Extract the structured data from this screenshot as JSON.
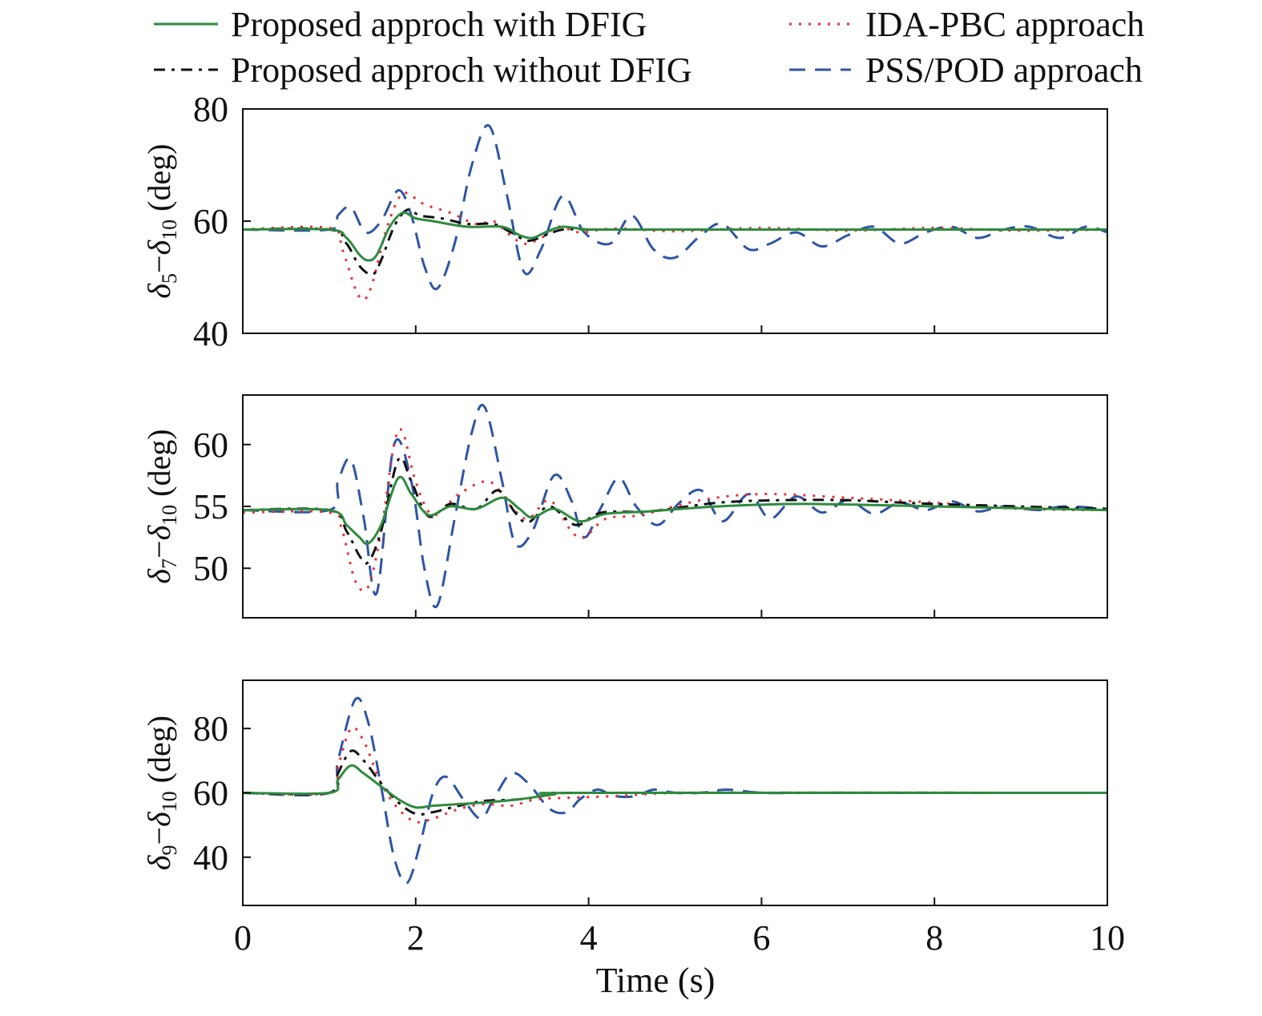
{
  "chart_data": [
    {
      "type": "line",
      "ylabel": {
        "sym1": "δ",
        "sub1": "5",
        "dash": "−",
        "sym2": "δ",
        "sub2": "10",
        "unit": " (deg)"
      },
      "ylim": [
        40,
        80
      ],
      "yticks": [
        40,
        60,
        80
      ],
      "xlim": [
        0,
        10
      ],
      "series": [
        {
          "name": "Proposed approch with DFIG",
          "x": [
            0,
            1,
            1.2,
            1.35,
            1.45,
            1.55,
            1.7,
            1.85,
            2.0,
            2.2,
            2.6,
            3.0,
            3.2,
            3.35,
            3.5,
            3.7,
            4.0,
            4.5,
            10
          ],
          "y": [
            58.5,
            58.5,
            57,
            54,
            53,
            54,
            59,
            61.5,
            60.5,
            60,
            59,
            59,
            57.5,
            57,
            58,
            59,
            58.5,
            58.5,
            58.5
          ]
        },
        {
          "name": "Proposed approch without DFIG",
          "x": [
            0,
            1,
            1.2,
            1.35,
            1.5,
            1.6,
            1.75,
            1.9,
            2.05,
            2.3,
            2.6,
            2.9,
            3.1,
            3.3,
            3.5,
            3.7,
            4.0,
            4.5,
            10
          ],
          "y": [
            58.5,
            58.5,
            56,
            52,
            50.5,
            53,
            59,
            62,
            61,
            60.5,
            59.5,
            59.5,
            58,
            56.5,
            57.5,
            58.5,
            58.5,
            58.5,
            58.5
          ]
        },
        {
          "name": "IDA-PBC approach",
          "x": [
            0,
            1,
            1.15,
            1.3,
            1.4,
            1.5,
            1.65,
            1.8,
            1.9,
            2.1,
            2.4,
            2.7,
            2.9,
            3.05,
            3.25,
            3.45,
            3.65,
            3.9,
            4.3,
            5,
            6,
            7,
            8,
            9,
            10
          ],
          "y": [
            58.5,
            58.8,
            55,
            48,
            46,
            49,
            58,
            64,
            65,
            63,
            61.5,
            59.5,
            60,
            58,
            56,
            57,
            59,
            58,
            58.7,
            58.2,
            58.8,
            58.3,
            58.8,
            58.3,
            58.5
          ]
        },
        {
          "name": "PSS/POD approach",
          "x": [
            0,
            1,
            1.1,
            1.25,
            1.42,
            1.6,
            1.8,
            1.95,
            2.1,
            2.25,
            2.45,
            2.65,
            2.85,
            3.05,
            3.25,
            3.45,
            3.7,
            3.95,
            4.25,
            4.5,
            4.75,
            5.0,
            5.3,
            5.55,
            5.85,
            6.1,
            6.4,
            6.7,
            7.0,
            7.3,
            7.6,
            7.9,
            8.2,
            8.5,
            8.8,
            9.1,
            9.45,
            9.75,
            10
          ],
          "y": [
            58.5,
            58.5,
            61,
            62.5,
            58,
            60,
            65.5,
            61,
            52,
            48,
            56,
            70,
            77,
            65,
            51,
            55,
            64.5,
            58,
            56,
            61,
            55,
            53.5,
            57.5,
            59.5,
            55,
            56,
            58,
            55.5,
            57.5,
            59,
            56,
            58,
            59,
            57,
            58.5,
            59,
            57,
            59,
            58
          ]
        }
      ]
    },
    {
      "type": "line",
      "ylabel": {
        "sym1": "δ",
        "sub1": "7",
        "dash": "−",
        "sym2": "δ",
        "sub2": "10",
        "unit": " (deg)"
      },
      "ylim": [
        46,
        64
      ],
      "yticks": [
        50,
        55,
        60
      ],
      "xlim": [
        0,
        10
      ],
      "series": [
        {
          "name": "Proposed approch with DFIG",
          "x": [
            0,
            1,
            1.2,
            1.35,
            1.45,
            1.6,
            1.8,
            1.95,
            2.15,
            2.4,
            2.7,
            3.0,
            3.2,
            3.35,
            3.6,
            3.9,
            4.2,
            4.7,
            5.5,
            6.5,
            8,
            10
          ],
          "y": [
            54.7,
            54.7,
            53.5,
            52.5,
            52,
            53.5,
            57.3,
            56,
            54.3,
            55,
            54.8,
            55.7,
            54.8,
            54.1,
            54.8,
            53.8,
            54.4,
            54.6,
            55,
            55.2,
            55,
            54.7
          ]
        },
        {
          "name": "Proposed approch without DFIG",
          "x": [
            0,
            1,
            1.2,
            1.35,
            1.45,
            1.6,
            1.8,
            1.95,
            2.15,
            2.4,
            2.7,
            2.95,
            3.15,
            3.3,
            3.55,
            3.85,
            4.15,
            4.7,
            5.5,
            6.2,
            7,
            8,
            10
          ],
          "y": [
            54.7,
            54.7,
            53,
            51,
            50.5,
            53,
            58.8,
            57,
            54.2,
            55.2,
            54.8,
            56.3,
            54.5,
            53.7,
            55,
            53.5,
            54.5,
            54.6,
            55.3,
            55.5,
            55.5,
            55.2,
            54.8
          ]
        },
        {
          "name": "IDA-PBC approach",
          "x": [
            0,
            1,
            1.15,
            1.3,
            1.45,
            1.6,
            1.75,
            1.85,
            2.0,
            2.2,
            2.5,
            2.85,
            3.1,
            3.3,
            3.55,
            3.8,
            3.95,
            4.2,
            4.6,
            5.3,
            6.0,
            7,
            8,
            9,
            10
          ],
          "y": [
            54.5,
            54.5,
            53,
            49,
            48.5,
            53,
            60,
            61,
            57,
            54.3,
            56,
            57,
            55,
            54,
            55.5,
            53,
            52.5,
            54,
            54.3,
            55.5,
            56,
            55.7,
            55.3,
            54.8,
            54.7
          ]
        },
        {
          "name": "PSS/POD approach",
          "x": [
            0,
            1,
            1.1,
            1.25,
            1.4,
            1.55,
            1.75,
            1.95,
            2.1,
            2.25,
            2.45,
            2.65,
            2.8,
            3.0,
            3.15,
            3.35,
            3.6,
            3.8,
            3.95,
            4.15,
            4.35,
            4.55,
            4.8,
            5.05,
            5.3,
            5.55,
            5.85,
            6.1,
            6.4,
            6.7,
            7.0,
            7.3,
            7.6,
            7.9,
            8.2,
            8.5,
            8.8,
            9.2,
            9.5,
            10
          ],
          "y": [
            54.7,
            54.7,
            57,
            58.8,
            54,
            48,
            60,
            57,
            50,
            47,
            54,
            61,
            63,
            57,
            52,
            53,
            57.5,
            55.5,
            52.5,
            55,
            57.3,
            55,
            53.5,
            55.3,
            56.3,
            53.8,
            56,
            54,
            55.8,
            54.5,
            55.5,
            54.4,
            55.3,
            54.7,
            55.4,
            54.6,
            55,
            54.7,
            55,
            54.8
          ]
        }
      ]
    },
    {
      "type": "line",
      "ylabel": {
        "sym1": "δ",
        "sub1": "9",
        "dash": "−",
        "sym2": "δ",
        "sub2": "10",
        "unit": " (deg)"
      },
      "ylim": [
        25,
        95
      ],
      "yticks": [
        40,
        60,
        80
      ],
      "xlim": [
        0,
        10
      ],
      "series": [
        {
          "name": "Proposed approch with DFIG",
          "x": [
            0,
            1,
            1.1,
            1.25,
            1.4,
            1.6,
            1.8,
            2.0,
            2.2,
            2.5,
            2.8,
            3.2,
            3.6,
            4,
            10
          ],
          "y": [
            60,
            60,
            64,
            68.5,
            66,
            62,
            58,
            55.5,
            56,
            56.5,
            57,
            58,
            59.5,
            60,
            60
          ]
        },
        {
          "name": "Proposed approch without DFIG",
          "x": [
            0,
            1,
            1.1,
            1.25,
            1.4,
            1.6,
            1.8,
            2.0,
            2.2,
            2.5,
            2.8,
            3.2,
            3.6,
            4,
            10
          ],
          "y": [
            60,
            60,
            66,
            73,
            70,
            63,
            57,
            53.5,
            54,
            56,
            57.5,
            58,
            59.5,
            60,
            60
          ]
        },
        {
          "name": "IDA-PBC approach",
          "x": [
            0,
            1,
            1.1,
            1.25,
            1.4,
            1.6,
            1.8,
            2.0,
            2.2,
            2.5,
            2.8,
            3.1,
            3.4,
            3.8,
            4.3,
            5,
            6,
            10
          ],
          "y": [
            60,
            60,
            68,
            80,
            76,
            63,
            55,
            51,
            52,
            55,
            56.5,
            56,
            58,
            58.5,
            59,
            60,
            60,
            60
          ]
        },
        {
          "name": "PSS/POD approach",
          "x": [
            0,
            1,
            1.1,
            1.3,
            1.45,
            1.6,
            1.75,
            1.9,
            2.05,
            2.2,
            2.35,
            2.55,
            2.75,
            2.9,
            3.1,
            3.3,
            3.55,
            3.75,
            3.9,
            4.1,
            4.3,
            4.55,
            4.75,
            5.0,
            5.3,
            5.6,
            6.0,
            6.5,
            7,
            8,
            9,
            10
          ],
          "y": [
            60,
            60,
            70,
            89,
            82,
            62,
            40,
            32,
            44,
            60,
            65,
            58,
            52,
            58,
            66,
            63,
            55,
            54,
            58,
            61,
            59,
            59,
            61,
            60,
            60,
            61,
            60,
            60,
            60,
            60,
            60,
            60
          ]
        }
      ]
    }
  ],
  "legend": [
    {
      "label": "Proposed approch with DFIG",
      "color": "#2e8b3e",
      "style": "solid"
    },
    {
      "label": "IDA-PBC approach",
      "color": "#e8303a",
      "style": "dotted"
    },
    {
      "label": "Proposed approch without DFIG",
      "color": "#111111",
      "style": "dashdot"
    },
    {
      "label": "PSS/POD approach",
      "color": "#2f55a4",
      "style": "dashed"
    }
  ],
  "xaxis": {
    "label": "Time (s)",
    "ticks": [
      0,
      2,
      4,
      6,
      8,
      10
    ]
  },
  "colors": {
    "with_dfig": "#2e8b3e",
    "without_dfig": "#111111",
    "ida_pbc": "#e8303a",
    "pss_pod": "#2f55a4"
  }
}
